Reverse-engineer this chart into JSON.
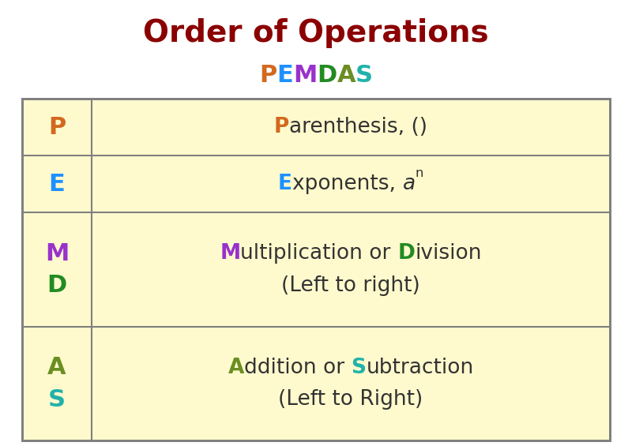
{
  "title": "Order of Operations",
  "title_color": "#8B0000",
  "subtitle_letters": [
    "P",
    "E",
    "M",
    "D",
    "A",
    "S"
  ],
  "subtitle_colors": [
    "#D2691E",
    "#1E90FF",
    "#9932CC",
    "#228B22",
    "#6B8E23",
    "#20B2AA"
  ],
  "background_color": "#FFFFFF",
  "table_bg": "#FFFACD",
  "table_border": "#808080",
  "letter_col_colors": [
    "#D2691E",
    "#1E90FF",
    "#9932CC",
    "#228B22",
    "#6B8E23",
    "#20B2AA"
  ],
  "row_letters": [
    [
      "P"
    ],
    [
      "E"
    ],
    [
      "M",
      "D"
    ],
    [
      "A",
      "S"
    ]
  ],
  "row_letter_colors": [
    [
      "#D2691E"
    ],
    [
      "#1E90FF"
    ],
    [
      "#9932CC",
      "#228B22"
    ],
    [
      "#6B8E23",
      "#20B2AA"
    ]
  ],
  "row_content_line1": [
    [
      {
        "t": "P",
        "c": "#D2691E",
        "b": true
      },
      {
        "t": "arenthesis, ()",
        "c": "#333333",
        "b": false
      }
    ],
    [
      {
        "t": "E",
        "c": "#1E90FF",
        "b": true
      },
      {
        "t": "xponents, ",
        "c": "#333333",
        "b": false
      },
      {
        "t": "a",
        "c": "#333333",
        "b": false,
        "i": true
      },
      {
        "t": "n",
        "c": "#333333",
        "b": false,
        "sup": true
      }
    ],
    [
      {
        "t": "M",
        "c": "#9932CC",
        "b": true
      },
      {
        "t": "ultiplication or ",
        "c": "#333333",
        "b": false
      },
      {
        "t": "D",
        "c": "#228B22",
        "b": true
      },
      {
        "t": "ivision",
        "c": "#333333",
        "b": false
      }
    ],
    [
      {
        "t": "A",
        "c": "#6B8E23",
        "b": true
      },
      {
        "t": "ddition or ",
        "c": "#333333",
        "b": false
      },
      {
        "t": "S",
        "c": "#20B2AA",
        "b": true
      },
      {
        "t": "ubtraction",
        "c": "#333333",
        "b": false
      }
    ]
  ],
  "row_content_line2": [
    null,
    null,
    "(Left to right)",
    "(Left to Right)"
  ]
}
